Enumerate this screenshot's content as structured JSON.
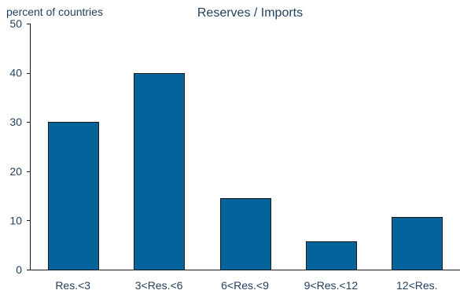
{
  "chart_data": {
    "type": "bar",
    "title": "Reserves / Imports",
    "ylabel": "percent of countries",
    "xlabel": "",
    "categories": [
      "Res.<3",
      "3<Res.<6",
      "6<Res.<9",
      "9<Res.<12",
      "12<Res."
    ],
    "values": [
      30,
      40,
      14.5,
      5.7,
      10.7
    ],
    "ylim": [
      0,
      50
    ],
    "yticks": [
      0,
      10,
      20,
      30,
      40,
      50
    ],
    "grid": false,
    "bar_color": "#04639a"
  }
}
